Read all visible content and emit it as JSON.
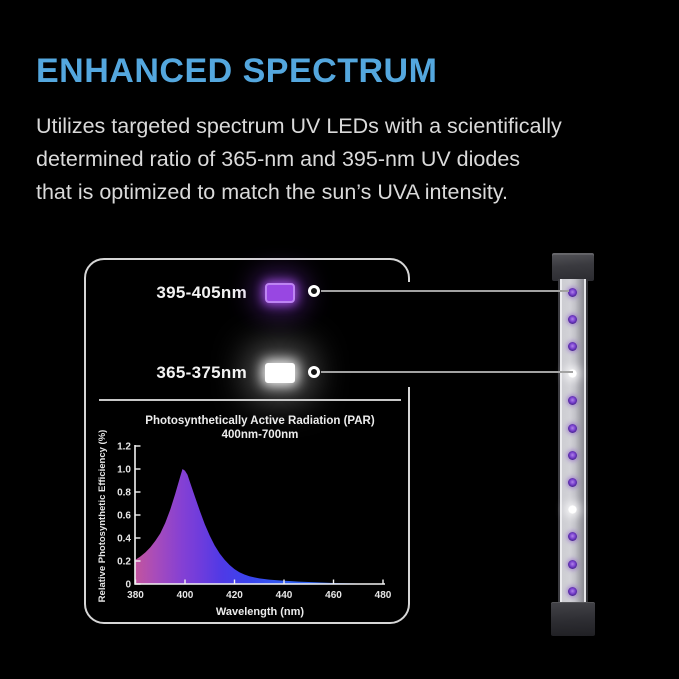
{
  "colors": {
    "background": "#000000",
    "title_accent": "#54a7de",
    "body_text": "#dadada",
    "panel_border": "#d6d6d6",
    "connector_line": "#a2a2a2",
    "purple_swatch": "#9847e2",
    "purple_swatch_border": "#bd84f2",
    "white_swatch": "#ffffff",
    "led_purple": "#7a42cf",
    "led_white": "#ffffff"
  },
  "header": {
    "title": "ENHANCED SPECTRUM",
    "body_lines": [
      "Utilizes targeted spectrum UV LEDs with a scientifically",
      "determined ratio of 365-nm and 395-nm UV diodes",
      "that is optimized to match the sun’s UVA intensity."
    ]
  },
  "panel": {
    "callouts": [
      {
        "label": "395-405nm",
        "swatch": "purple"
      },
      {
        "label": "365-375nm",
        "swatch": "white"
      }
    ]
  },
  "led_bar": {
    "pattern": [
      "purple",
      "purple",
      "purple",
      "white",
      "purple",
      "purple",
      "purple",
      "purple",
      "white",
      "purple",
      "purple",
      "purple"
    ]
  },
  "chart_data": {
    "type": "area",
    "title": "Photosynthetically Active Radiation (PAR)",
    "subtitle": "400nm-700nm",
    "xlabel": "Wavelength (nm)",
    "ylabel": "Relative Photosynthetic Efficiency (%)",
    "xlim": [
      380,
      480
    ],
    "ylim": [
      0,
      1.2
    ],
    "x_ticks": [
      380,
      400,
      420,
      440,
      460,
      480
    ],
    "y_ticks": [
      0,
      0.2,
      0.4,
      0.6,
      0.8,
      1.0,
      1.2
    ],
    "grid": false,
    "legend": "none",
    "peak": {
      "x": 399,
      "y": 1.0
    },
    "points": [
      [
        380,
        0.21
      ],
      [
        382,
        0.24
      ],
      [
        384,
        0.275
      ],
      [
        386,
        0.32
      ],
      [
        388,
        0.375
      ],
      [
        390,
        0.44
      ],
      [
        392,
        0.53
      ],
      [
        394,
        0.645
      ],
      [
        396,
        0.78
      ],
      [
        398,
        0.93
      ],
      [
        399,
        1.0
      ],
      [
        400,
        0.985
      ],
      [
        401,
        0.95
      ],
      [
        402,
        0.885
      ],
      [
        404,
        0.76
      ],
      [
        406,
        0.635
      ],
      [
        408,
        0.52
      ],
      [
        410,
        0.42
      ],
      [
        412,
        0.335
      ],
      [
        414,
        0.265
      ],
      [
        416,
        0.21
      ],
      [
        418,
        0.165
      ],
      [
        420,
        0.13
      ],
      [
        422,
        0.103
      ],
      [
        424,
        0.083
      ],
      [
        426,
        0.068
      ],
      [
        428,
        0.057
      ],
      [
        430,
        0.049
      ],
      [
        434,
        0.038
      ],
      [
        438,
        0.031
      ],
      [
        442,
        0.026
      ],
      [
        446,
        0.021
      ],
      [
        450,
        0.017
      ],
      [
        455,
        0.013
      ],
      [
        460,
        0.009
      ],
      [
        465,
        0.006
      ],
      [
        470,
        0.004
      ],
      [
        475,
        0.002
      ],
      [
        480,
        0.001
      ]
    ],
    "gradient_stops": [
      [
        "0%",
        "#c2549e"
      ],
      [
        "8%",
        "#a84cba"
      ],
      [
        "19%",
        "#8440d4"
      ],
      [
        "26%",
        "#6f3cdc"
      ],
      [
        "35%",
        "#4f3ae6"
      ],
      [
        "46%",
        "#3a44ee"
      ],
      [
        "62%",
        "#2f5ef2"
      ],
      [
        "100%",
        "#2b6cf0"
      ]
    ]
  }
}
